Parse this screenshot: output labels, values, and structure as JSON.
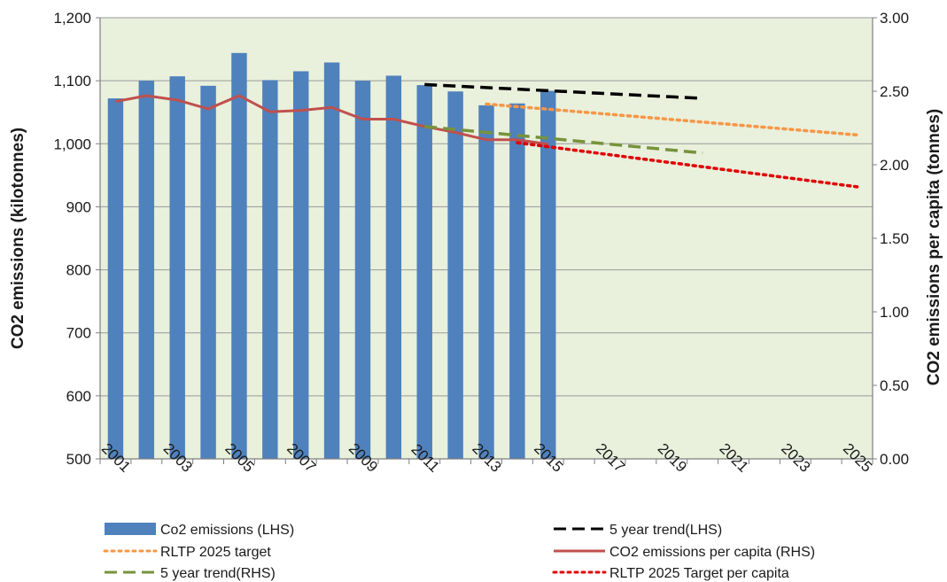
{
  "chart_data": {
    "type": "bar",
    "x_categories": [
      "2001",
      "2002",
      "2003",
      "2004",
      "2005",
      "2006",
      "2007",
      "2008",
      "2009",
      "2010",
      "2011",
      "2012",
      "2013",
      "2014",
      "2015",
      "2016",
      "2017",
      "2018",
      "2019",
      "2020",
      "2021",
      "2022",
      "2023",
      "2024",
      "2025"
    ],
    "x_tick_labels": [
      "2001",
      "2003",
      "2005",
      "2007",
      "2009",
      "2011",
      "2013",
      "2015",
      "2017",
      "2019",
      "2021",
      "2023",
      "2025"
    ],
    "y_left": {
      "label": "CO2 emissions (kilotonnes)",
      "range": [
        500,
        1200
      ],
      "ticks": [
        "500",
        "600",
        "700",
        "800",
        "900",
        "1,000",
        "1,100",
        "1,200"
      ]
    },
    "y_right": {
      "label": "CO2 emissions per capita (tonnes)",
      "range": [
        0,
        3
      ],
      "ticks": [
        "0.00",
        "0.50",
        "1.00",
        "1.50",
        "2.00",
        "2.50",
        "3.00"
      ]
    },
    "grid": true,
    "plot_background": "#e9f0dc",
    "series": [
      {
        "name": "Co2 emissions (LHS)",
        "kind": "bar",
        "axis": "left",
        "color": "#4f81bd",
        "x": [
          "2001",
          "2002",
          "2003",
          "2004",
          "2005",
          "2006",
          "2007",
          "2008",
          "2009",
          "2010",
          "2011",
          "2012",
          "2013",
          "2014",
          "2015"
        ],
        "values": [
          1072,
          1100,
          1107,
          1092,
          1144,
          1101,
          1115,
          1129,
          1100,
          1108,
          1093,
          1083,
          1061,
          1064,
          1084
        ]
      },
      {
        "name": "5 year trend(LHS)",
        "kind": "line",
        "style": "dashed",
        "axis": "left",
        "color": "#000000",
        "x": [
          "2011",
          "2020"
        ],
        "values": [
          1094,
          1072
        ]
      },
      {
        "name": "RLTP 2025 target",
        "kind": "line",
        "style": "dotted",
        "axis": "left",
        "color": "#f79646",
        "x": [
          "2013",
          "2025"
        ],
        "values": [
          1063,
          1014
        ]
      },
      {
        "name": "CO2 emissions per capita (RHS)",
        "kind": "line",
        "style": "solid",
        "axis": "right",
        "color": "#c0504d",
        "x": [
          "2001",
          "2002",
          "2003",
          "2004",
          "2005",
          "2006",
          "2007",
          "2008",
          "2009",
          "2010",
          "2011",
          "2012",
          "2013",
          "2014",
          "2015"
        ],
        "values": [
          2.43,
          2.47,
          2.44,
          2.38,
          2.47,
          2.36,
          2.37,
          2.39,
          2.31,
          2.31,
          2.26,
          2.22,
          2.17,
          2.17,
          2.14
        ]
      },
      {
        "name": "5 year trend(RHS)",
        "kind": "line",
        "style": "dashed",
        "axis": "right",
        "color": "#77933c",
        "x": [
          "2011",
          "2020"
        ],
        "values": [
          2.26,
          2.08
        ]
      },
      {
        "name": "RLTP 2025 Target per capita",
        "kind": "line",
        "style": "dotted",
        "axis": "right",
        "color": "#e00000",
        "x": [
          "2014",
          "2025"
        ],
        "values": [
          2.15,
          1.85
        ]
      }
    ],
    "legend": {
      "placement": "bottom",
      "items": [
        {
          "label": "Co2 emissions (LHS)",
          "symbol": "bar",
          "color": "#4f81bd"
        },
        {
          "label": "5 year trend(LHS)",
          "symbol": "dashed",
          "color": "#000000"
        },
        {
          "label": "RLTP 2025 target",
          "symbol": "dotted",
          "color": "#f79646"
        },
        {
          "label": "CO2 emissions per capita (RHS)",
          "symbol": "solid",
          "color": "#c0504d"
        },
        {
          "label": "5 year trend(RHS)",
          "symbol": "dashed",
          "color": "#77933c"
        },
        {
          "label": "RLTP 2025 Target per capita",
          "symbol": "dotted",
          "color": "#e00000"
        }
      ]
    }
  }
}
